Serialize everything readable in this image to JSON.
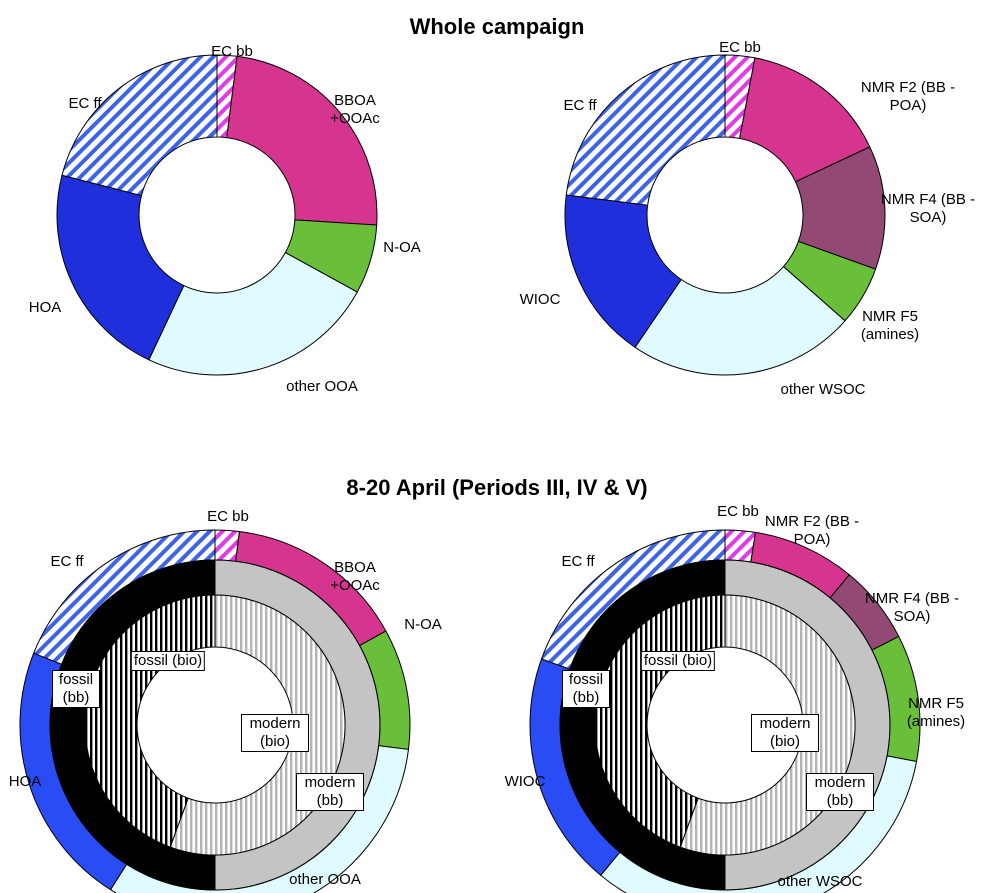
{
  "chart_data": [
    {
      "type": "donut",
      "title": "Whole campaign",
      "rings": [
        {
          "categories": [
            "EC bb",
            "BBOA +OOAc",
            "N-OA",
            "other OOA",
            "HOA",
            "EC ff"
          ],
          "values": [
            2,
            24,
            7,
            24,
            22,
            21
          ],
          "colors": [
            "#e23ae6",
            "#d6358f",
            "#6abf3a",
            "#e0fbfd",
            "#1f2fdc",
            "#3f63e6"
          ],
          "patterns": [
            "diagonal",
            "solid",
            "solid",
            "solid",
            "solid",
            "diagonal"
          ]
        }
      ]
    },
    {
      "type": "donut",
      "rings": [
        {
          "categories": [
            "EC bb",
            "NMR F2 (BB - POA)",
            "NMR F4 (BB - SOA)",
            "NMR F5 (amines)",
            "other WSOC",
            "WIOC",
            "EC ff"
          ],
          "values": [
            3,
            15,
            12.5,
            6,
            23,
            17.5,
            23
          ],
          "colors": [
            "#e23ae6",
            "#d6358f",
            "#924a74",
            "#6abf3a",
            "#e0fbfd",
            "#1f2fdc",
            "#3f63e6"
          ],
          "patterns": [
            "diagonal",
            "solid",
            "solid",
            "solid",
            "solid",
            "solid",
            "diagonal"
          ]
        }
      ]
    },
    {
      "type": "donut",
      "title": "8-20 April (Periods III, IV & V)",
      "rings": [
        {
          "categories": [
            "EC bb",
            "BBOA +OOAc",
            "N-OA",
            "other OOA",
            "HOA",
            "EC ff"
          ],
          "values": [
            2,
            15,
            10,
            32,
            22,
            19
          ],
          "colors": [
            "#e23ae6",
            "#d6358f",
            "#6abf3a",
            "#e0fbfd",
            "#2a4cf5",
            "#3f63e6"
          ],
          "patterns": [
            "diagonal",
            "solid",
            "solid",
            "solid",
            "solid",
            "diagonal"
          ]
        },
        {
          "categories": [
            "modern (bb)",
            "fossil (bb)"
          ],
          "values": [
            50,
            50
          ],
          "colors": [
            "#c4c4c4",
            "#000000"
          ],
          "patterns": [
            "solid",
            "solid"
          ]
        },
        {
          "categories": [
            "modern (bio)",
            "fossil (bio)"
          ],
          "values": [
            55.6,
            44.4
          ],
          "colors": [
            "#b4b4b4",
            "#000000"
          ],
          "patterns": [
            "vertical",
            "vertical"
          ]
        }
      ]
    },
    {
      "type": "donut",
      "rings": [
        {
          "categories": [
            "EC bb",
            "NMR F2 (BB - POA)",
            "NMR F4 (BB - SOA)",
            "NMR F5 (amines)",
            "other WSOC",
            "WIOC",
            "EC ff"
          ],
          "values": [
            2.5,
            8.5,
            6.5,
            10.5,
            33,
            19.5,
            19.5
          ],
          "colors": [
            "#e23ae6",
            "#d6358f",
            "#924a74",
            "#6abf3a",
            "#e0fbfd",
            "#2a4cf5",
            "#3f63e6"
          ],
          "patterns": [
            "diagonal",
            "solid",
            "solid",
            "solid",
            "solid",
            "solid",
            "diagonal"
          ]
        },
        {
          "categories": [
            "modern (bb)",
            "fossil (bb)"
          ],
          "values": [
            50,
            50
          ],
          "colors": [
            "#c4c4c4",
            "#000000"
          ],
          "patterns": [
            "solid",
            "solid"
          ]
        },
        {
          "categories": [
            "modern (bio)",
            "fossil (bio)"
          ],
          "values": [
            55.6,
            44.4
          ],
          "colors": [
            "#b4b4b4",
            "#000000"
          ],
          "patterns": [
            "vertical",
            "vertical"
          ]
        }
      ]
    }
  ]
}
